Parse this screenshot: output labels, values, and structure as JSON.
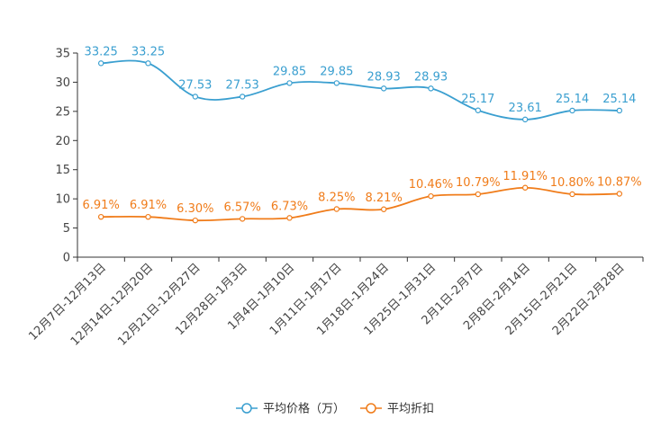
{
  "chart_data": {
    "type": "line",
    "categories": [
      "12月7日-12月13日",
      "12月14日-12月20日",
      "12月21日-12月27日",
      "12月28日-1月3日",
      "1月4日-1月10日",
      "1月11日-1月17日",
      "1月18日-1月24日",
      "1月25日-1月31日",
      "2月1日-2月7日",
      "2月8日-2月14日",
      "2月15日-2月21日",
      "2月22日-2月28日"
    ],
    "series": [
      {
        "name": "平均价格（万）",
        "color": "#3a9fd0",
        "values": [
          33.25,
          33.25,
          27.53,
          27.53,
          29.85,
          29.85,
          28.93,
          28.93,
          25.17,
          23.61,
          25.14,
          25.14
        ],
        "labels": [
          "33.25",
          "33.25",
          "27.53",
          "27.53",
          "29.85",
          "29.85",
          "28.93",
          "28.93",
          "25.17",
          "23.61",
          "25.14",
          "25.14"
        ]
      },
      {
        "name": "平均折扣",
        "color": "#f07c1a",
        "values": [
          6.91,
          6.91,
          6.3,
          6.57,
          6.73,
          8.25,
          8.21,
          10.46,
          10.79,
          11.91,
          10.8,
          10.87
        ],
        "labels": [
          "6.91%",
          "6.91%",
          "6.30%",
          "6.57%",
          "6.73%",
          "8.25%",
          "8.21%",
          "10.46%",
          "10.79%",
          "11.91%",
          "10.80%",
          "10.87%"
        ]
      }
    ],
    "yticks": [
      "0",
      "5",
      "10",
      "15",
      "20",
      "25",
      "30",
      "35"
    ],
    "ylim": [
      0,
      35
    ],
    "title": "",
    "xlabel": "",
    "ylabel": "",
    "legend_position": "bottom-center"
  }
}
